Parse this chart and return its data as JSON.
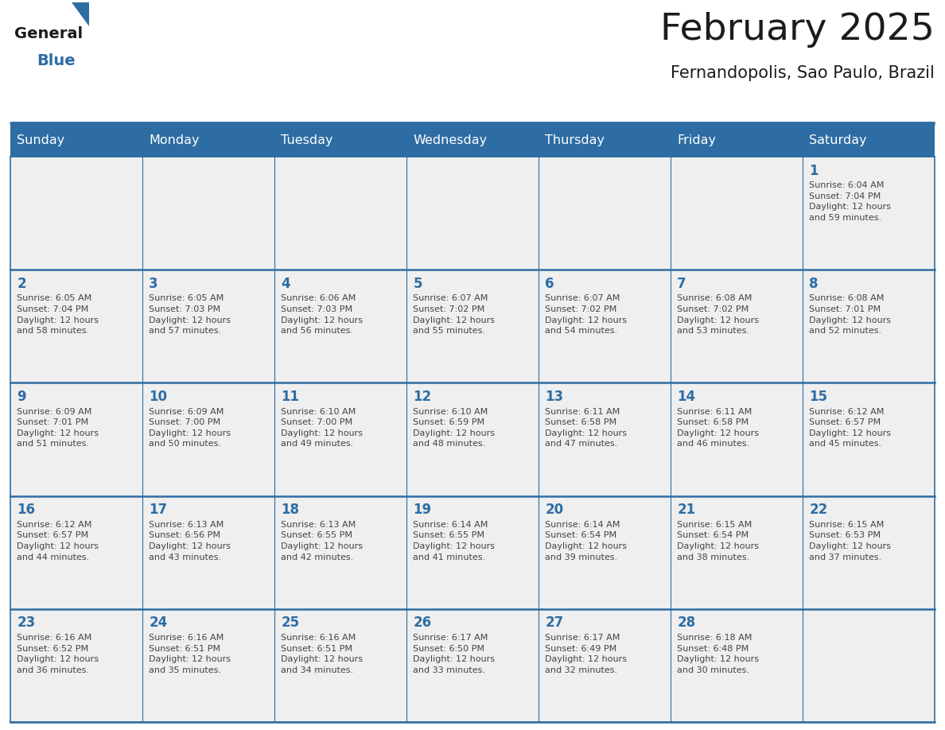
{
  "title": "February 2025",
  "subtitle": "Fernandopolis, Sao Paulo, Brazil",
  "header_bg": "#2E6DA4",
  "header_text": "#FFFFFF",
  "cell_bg": "#EFEFEF",
  "day_number_color": "#2E6DA4",
  "cell_text_color": "#444444",
  "border_color": "#2E6DA4",
  "days_of_week": [
    "Sunday",
    "Monday",
    "Tuesday",
    "Wednesday",
    "Thursday",
    "Friday",
    "Saturday"
  ],
  "weeks": [
    [
      {
        "day": null,
        "info": null
      },
      {
        "day": null,
        "info": null
      },
      {
        "day": null,
        "info": null
      },
      {
        "day": null,
        "info": null
      },
      {
        "day": null,
        "info": null
      },
      {
        "day": null,
        "info": null
      },
      {
        "day": "1",
        "info": "Sunrise: 6:04 AM\nSunset: 7:04 PM\nDaylight: 12 hours\nand 59 minutes."
      }
    ],
    [
      {
        "day": "2",
        "info": "Sunrise: 6:05 AM\nSunset: 7:04 PM\nDaylight: 12 hours\nand 58 minutes."
      },
      {
        "day": "3",
        "info": "Sunrise: 6:05 AM\nSunset: 7:03 PM\nDaylight: 12 hours\nand 57 minutes."
      },
      {
        "day": "4",
        "info": "Sunrise: 6:06 AM\nSunset: 7:03 PM\nDaylight: 12 hours\nand 56 minutes."
      },
      {
        "day": "5",
        "info": "Sunrise: 6:07 AM\nSunset: 7:02 PM\nDaylight: 12 hours\nand 55 minutes."
      },
      {
        "day": "6",
        "info": "Sunrise: 6:07 AM\nSunset: 7:02 PM\nDaylight: 12 hours\nand 54 minutes."
      },
      {
        "day": "7",
        "info": "Sunrise: 6:08 AM\nSunset: 7:02 PM\nDaylight: 12 hours\nand 53 minutes."
      },
      {
        "day": "8",
        "info": "Sunrise: 6:08 AM\nSunset: 7:01 PM\nDaylight: 12 hours\nand 52 minutes."
      }
    ],
    [
      {
        "day": "9",
        "info": "Sunrise: 6:09 AM\nSunset: 7:01 PM\nDaylight: 12 hours\nand 51 minutes."
      },
      {
        "day": "10",
        "info": "Sunrise: 6:09 AM\nSunset: 7:00 PM\nDaylight: 12 hours\nand 50 minutes."
      },
      {
        "day": "11",
        "info": "Sunrise: 6:10 AM\nSunset: 7:00 PM\nDaylight: 12 hours\nand 49 minutes."
      },
      {
        "day": "12",
        "info": "Sunrise: 6:10 AM\nSunset: 6:59 PM\nDaylight: 12 hours\nand 48 minutes."
      },
      {
        "day": "13",
        "info": "Sunrise: 6:11 AM\nSunset: 6:58 PM\nDaylight: 12 hours\nand 47 minutes."
      },
      {
        "day": "14",
        "info": "Sunrise: 6:11 AM\nSunset: 6:58 PM\nDaylight: 12 hours\nand 46 minutes."
      },
      {
        "day": "15",
        "info": "Sunrise: 6:12 AM\nSunset: 6:57 PM\nDaylight: 12 hours\nand 45 minutes."
      }
    ],
    [
      {
        "day": "16",
        "info": "Sunrise: 6:12 AM\nSunset: 6:57 PM\nDaylight: 12 hours\nand 44 minutes."
      },
      {
        "day": "17",
        "info": "Sunrise: 6:13 AM\nSunset: 6:56 PM\nDaylight: 12 hours\nand 43 minutes."
      },
      {
        "day": "18",
        "info": "Sunrise: 6:13 AM\nSunset: 6:55 PM\nDaylight: 12 hours\nand 42 minutes."
      },
      {
        "day": "19",
        "info": "Sunrise: 6:14 AM\nSunset: 6:55 PM\nDaylight: 12 hours\nand 41 minutes."
      },
      {
        "day": "20",
        "info": "Sunrise: 6:14 AM\nSunset: 6:54 PM\nDaylight: 12 hours\nand 39 minutes."
      },
      {
        "day": "21",
        "info": "Sunrise: 6:15 AM\nSunset: 6:54 PM\nDaylight: 12 hours\nand 38 minutes."
      },
      {
        "day": "22",
        "info": "Sunrise: 6:15 AM\nSunset: 6:53 PM\nDaylight: 12 hours\nand 37 minutes."
      }
    ],
    [
      {
        "day": "23",
        "info": "Sunrise: 6:16 AM\nSunset: 6:52 PM\nDaylight: 12 hours\nand 36 minutes."
      },
      {
        "day": "24",
        "info": "Sunrise: 6:16 AM\nSunset: 6:51 PM\nDaylight: 12 hours\nand 35 minutes."
      },
      {
        "day": "25",
        "info": "Sunrise: 6:16 AM\nSunset: 6:51 PM\nDaylight: 12 hours\nand 34 minutes."
      },
      {
        "day": "26",
        "info": "Sunrise: 6:17 AM\nSunset: 6:50 PM\nDaylight: 12 hours\nand 33 minutes."
      },
      {
        "day": "27",
        "info": "Sunrise: 6:17 AM\nSunset: 6:49 PM\nDaylight: 12 hours\nand 32 minutes."
      },
      {
        "day": "28",
        "info": "Sunrise: 6:18 AM\nSunset: 6:48 PM\nDaylight: 12 hours\nand 30 minutes."
      },
      {
        "day": null,
        "info": null
      }
    ]
  ],
  "fig_width": 11.88,
  "fig_height": 9.18,
  "dpi": 100
}
